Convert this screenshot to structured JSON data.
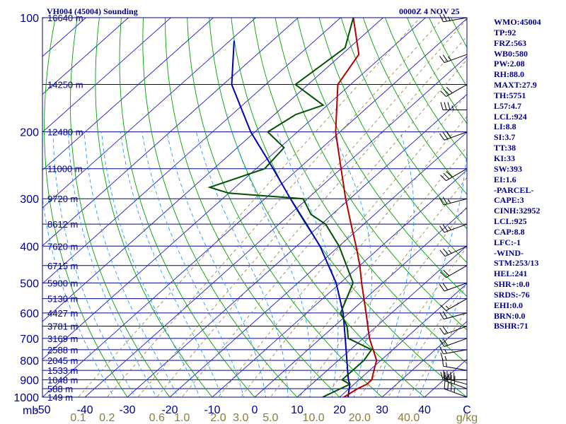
{
  "header": {
    "station": "VH004 (45004) Sounding",
    "time": "0000Z  4 NOV 25"
  },
  "stats": [
    "WMO:45004",
    "TP:92",
    "FRZ:563",
    "WB0:580",
    "PW:2.08",
    "RH:88.0",
    "MAXT:27.9",
    "TH:5751",
    "L57:4.7",
    "LCL:924",
    "LI:8.8",
    "SI:3.7",
    "TT:38",
    "KI:33",
    "SW:393",
    "EI:1.6",
    "-PARCEL-",
    "CAPE:3",
    "CINH:32952",
    "LCL:925",
    "CAP:8.8",
    "LFC:-1",
    "-WIND-",
    "STM:253/13",
    "HEL:241",
    "SHR+:0.0",
    "SRDS:-76",
    "EHI:0.0",
    "BRN:0.0",
    "BSHR:71"
  ],
  "colors": {
    "isobar": "#00008b",
    "isotherm": "#1e1ec8",
    "dry_adiabat": "#00a000",
    "moist_adiabat": "#1e9bff",
    "mixing_ratio": "#8b7d37",
    "temperature": "#b40000",
    "dewpoint": "#005000",
    "parcel": "#0000b4",
    "label": "#00008b",
    "mixing_label": "#8b7d37",
    "barb": "#000000"
  },
  "chart_data": {
    "type": "skew-t",
    "xlim": [
      -50,
      50
    ],
    "ylim": [
      1000,
      100
    ],
    "y_unit": "mb",
    "x_unit": "C",
    "mixing_unit": "g/kg",
    "pressure_ticks": [
      100,
      200,
      300,
      400,
      500,
      600,
      700,
      800,
      900,
      1000
    ],
    "temperature_ticks": [
      "-50",
      "-40",
      "-30",
      "-20",
      "-10",
      "0",
      "10",
      "20",
      "30",
      "40",
      "C"
    ],
    "mixing_ratio_ticks": [
      "0.1",
      "0.2",
      "0.6",
      "1.0",
      "2.0",
      "3.0",
      "5.0",
      "10.0",
      "20.0",
      "40.0"
    ],
    "height_labels": [
      {
        "p": 100,
        "h": "16640 m"
      },
      {
        "p": 150,
        "h": "14250 m"
      },
      {
        "p": 200,
        "h": "12480 m"
      },
      {
        "p": 250,
        "h": "11000 m"
      },
      {
        "p": 300,
        "h": "9720 m"
      },
      {
        "p": 350,
        "h": "8612 m"
      },
      {
        "p": 400,
        "h": "7620 m"
      },
      {
        "p": 450,
        "h": "6715 m"
      },
      {
        "p": 500,
        "h": "5900 m"
      },
      {
        "p": 550,
        "h": "5130 m"
      },
      {
        "p": 600,
        "h": "4427 m"
      },
      {
        "p": 650,
        "h": "3781 m"
      },
      {
        "p": 700,
        "h": "3169 m"
      },
      {
        "p": 750,
        "h": "2588 m"
      },
      {
        "p": 800,
        "h": "2045 m"
      },
      {
        "p": 850,
        "h": "1533 m"
      },
      {
        "p": 900,
        "h": "1048 m"
      },
      {
        "p": 950,
        "h": "588 m"
      },
      {
        "p": 1000,
        "h": "149 m"
      }
    ],
    "temperature_profile": [
      {
        "p": 1000,
        "t": 21
      },
      {
        "p": 950,
        "t": 22
      },
      {
        "p": 925,
        "t": 23
      },
      {
        "p": 900,
        "t": 23
      },
      {
        "p": 850,
        "t": 21
      },
      {
        "p": 800,
        "t": 19
      },
      {
        "p": 700,
        "t": 11.5
      },
      {
        "p": 600,
        "t": 4
      },
      {
        "p": 500,
        "t": -5
      },
      {
        "p": 450,
        "t": -10
      },
      {
        "p": 400,
        "t": -16
      },
      {
        "p": 350,
        "t": -23
      },
      {
        "p": 300,
        "t": -31
      },
      {
        "p": 250,
        "t": -40
      },
      {
        "p": 200,
        "t": -51
      },
      {
        "p": 150,
        "t": -63
      },
      {
        "p": 125,
        "t": -66
      },
      {
        "p": 100,
        "t": -77
      }
    ],
    "dewpoint_profile": [
      {
        "p": 1000,
        "t": 16
      },
      {
        "p": 925,
        "t": 19
      },
      {
        "p": 900,
        "t": 16
      },
      {
        "p": 850,
        "t": 16
      },
      {
        "p": 800,
        "t": 16
      },
      {
        "p": 750,
        "t": 15
      },
      {
        "p": 700,
        "t": 6.5
      },
      {
        "p": 650,
        "t": 3
      },
      {
        "p": 600,
        "t": -2
      },
      {
        "p": 500,
        "t": -7
      },
      {
        "p": 400,
        "t": -20
      },
      {
        "p": 350,
        "t": -29
      },
      {
        "p": 330,
        "t": -35
      },
      {
        "p": 300,
        "t": -41
      },
      {
        "p": 290,
        "t": -60
      },
      {
        "p": 280,
        "t": -66
      },
      {
        "p": 250,
        "t": -58
      },
      {
        "p": 220,
        "t": -59
      },
      {
        "p": 200,
        "t": -67
      },
      {
        "p": 180,
        "t": -65
      },
      {
        "p": 170,
        "t": -61
      },
      {
        "p": 150,
        "t": -73
      },
      {
        "p": 120,
        "t": -71
      },
      {
        "p": 100,
        "t": -77
      }
    ],
    "parcel_profile": [
      {
        "p": 1000,
        "t": 22
      },
      {
        "p": 925,
        "t": 19
      },
      {
        "p": 900,
        "t": 17.5
      },
      {
        "p": 850,
        "t": 14.8
      },
      {
        "p": 800,
        "t": 12
      },
      {
        "p": 700,
        "t": 5.8
      },
      {
        "p": 600,
        "t": -1.4
      },
      {
        "p": 500,
        "t": -11
      },
      {
        "p": 400,
        "t": -24.5
      },
      {
        "p": 350,
        "t": -33.5
      },
      {
        "p": 300,
        "t": -44
      },
      {
        "p": 250,
        "t": -56
      },
      {
        "p": 200,
        "t": -71
      },
      {
        "p": 150,
        "t": -88
      },
      {
        "p": 115,
        "t": -99
      }
    ],
    "wind_barbs": [
      {
        "p": 1000,
        "dir": 290,
        "spd": 35
      },
      {
        "p": 950,
        "dir": 290,
        "spd": 40
      },
      {
        "p": 925,
        "dir": 285,
        "spd": 40
      },
      {
        "p": 900,
        "dir": 270,
        "spd": 25
      },
      {
        "p": 850,
        "dir": 280,
        "spd": 15
      },
      {
        "p": 800,
        "dir": 270,
        "spd": 15
      },
      {
        "p": 750,
        "dir": 260,
        "spd": 15
      },
      {
        "p": 700,
        "dir": 250,
        "spd": 20
      },
      {
        "p": 650,
        "dir": 250,
        "spd": 20
      },
      {
        "p": 600,
        "dir": 255,
        "spd": 20
      },
      {
        "p": 550,
        "dir": 240,
        "spd": 15
      },
      {
        "p": 500,
        "dir": 250,
        "spd": 20
      },
      {
        "p": 450,
        "dir": 240,
        "spd": 20
      },
      {
        "p": 400,
        "dir": 245,
        "spd": 25
      },
      {
        "p": 350,
        "dir": 250,
        "spd": 25
      },
      {
        "p": 300,
        "dir": 255,
        "spd": 25
      },
      {
        "p": 250,
        "dir": 240,
        "spd": 30
      },
      {
        "p": 200,
        "dir": 250,
        "spd": 30
      },
      {
        "p": 175,
        "dir": 270,
        "spd": 35
      },
      {
        "p": 150,
        "dir": 240,
        "spd": 30
      },
      {
        "p": 125,
        "dir": 250,
        "spd": 25
      },
      {
        "p": 100,
        "dir": 260,
        "spd": 25
      }
    ]
  }
}
